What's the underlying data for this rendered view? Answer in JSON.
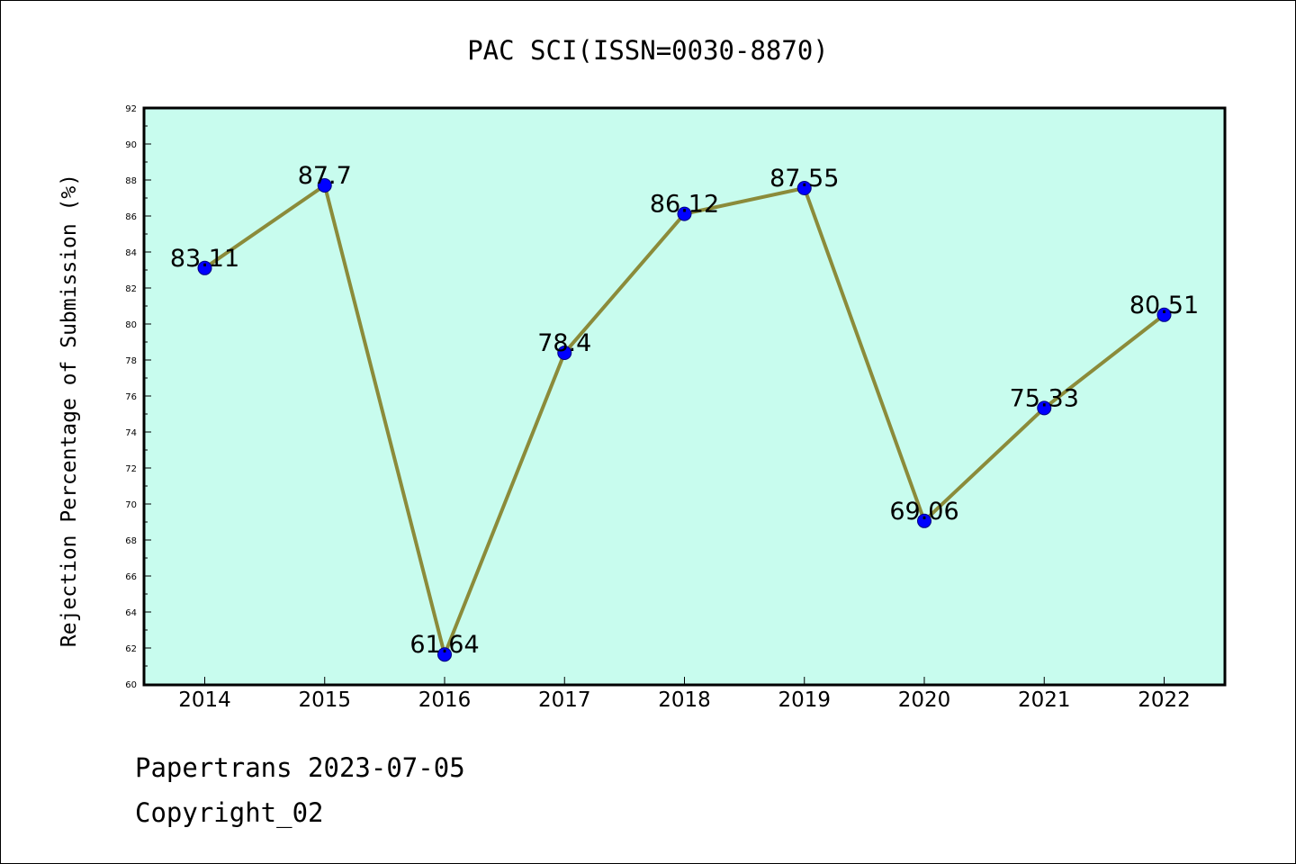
{
  "chart_data": {
    "type": "line",
    "title": "PAC SCI(ISSN=0030-8870)",
    "xlabel": "",
    "ylabel": "Rejection Percentage of Submission (%)",
    "categories": [
      "2014",
      "2015",
      "2016",
      "2017",
      "2018",
      "2019",
      "2020",
      "2021",
      "2022"
    ],
    "series": [
      {
        "values": [
          83.11,
          87.7,
          61.64,
          78.4,
          86.12,
          87.55,
          69.06,
          75.33,
          80.51
        ]
      }
    ],
    "data_labels": [
      "83.11",
      "87.7",
      "61.64",
      "78.4",
      "86.12",
      "87.55",
      "69.06",
      "75.33",
      "80.51"
    ],
    "ylim": [
      60,
      92
    ],
    "y_ticks": [
      "60",
      "62",
      "64",
      "66",
      "68",
      "70",
      "72",
      "74",
      "76",
      "78",
      "80",
      "82",
      "84",
      "86",
      "88",
      "90",
      "92"
    ],
    "grid": false,
    "legend": "none",
    "colors": {
      "plot_background": "#c8fcee",
      "line": "#8b8b3a",
      "marker_fill": "#0000ff",
      "marker_edge": "#000080",
      "axes": "#000000"
    }
  },
  "footer": {
    "line1": "Papertrans 2023-07-05",
    "line2": "Copyright_02"
  }
}
